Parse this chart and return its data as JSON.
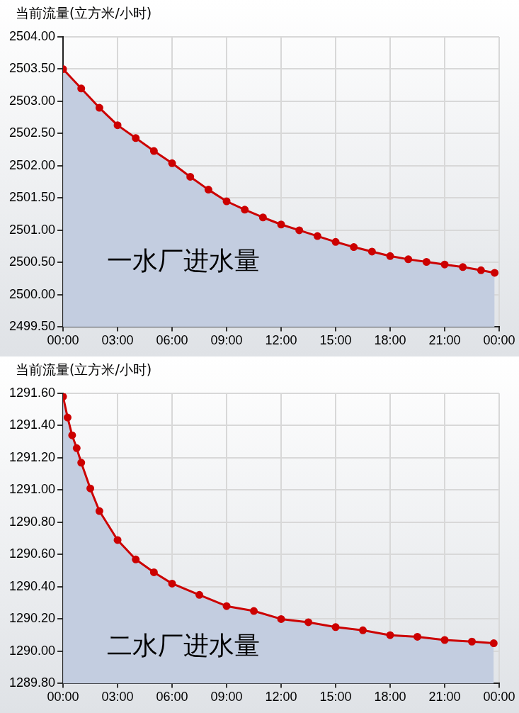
{
  "chart_data": [
    {
      "type": "area",
      "ylabel": "当前流量(立方米/小时)",
      "annotations": [
        "一水厂进水量"
      ],
      "marker": "circle",
      "grid": true,
      "x": [
        0,
        1,
        2,
        3,
        4,
        5,
        6,
        7,
        8,
        9,
        10,
        11,
        12,
        13,
        14,
        15,
        16,
        17,
        18,
        19,
        20,
        21,
        22,
        23,
        23.75
      ],
      "series": [
        {
          "color": "#cc0000",
          "values": [
            2503.5,
            2503.2,
            2502.9,
            2502.63,
            2502.43,
            2502.23,
            2502.04,
            2501.83,
            2501.63,
            2501.45,
            2501.32,
            2501.2,
            2501.09,
            2501.0,
            2500.91,
            2500.82,
            2500.74,
            2500.67,
            2500.6,
            2500.55,
            2500.51,
            2500.47,
            2500.43,
            2500.38,
            2500.34
          ]
        }
      ],
      "xlim": [
        0,
        24
      ],
      "xticks": [
        {
          "value": 0,
          "label": "00:00"
        },
        {
          "value": 3,
          "label": "03:00"
        },
        {
          "value": 6,
          "label": "06:00"
        },
        {
          "value": 9,
          "label": "09:00"
        },
        {
          "value": 12,
          "label": "12:00"
        },
        {
          "value": 15,
          "label": "15:00"
        },
        {
          "value": 18,
          "label": "18:00"
        },
        {
          "value": 21,
          "label": "21:00"
        },
        {
          "value": 24,
          "label": "00:00"
        }
      ],
      "ylim": [
        2499.5,
        2504
      ],
      "yticks": [
        {
          "value": 2499.5,
          "label": "2499.50"
        },
        {
          "value": 2500,
          "label": "2500.00"
        },
        {
          "value": 2500.5,
          "label": "2500.50"
        },
        {
          "value": 2501,
          "label": "2501.00"
        },
        {
          "value": 2501.5,
          "label": "2501.50"
        },
        {
          "value": 2502,
          "label": "2502.00"
        },
        {
          "value": 2502.5,
          "label": "2502.50"
        },
        {
          "value": 2503,
          "label": "2503.00"
        },
        {
          "value": 2503.5,
          "label": "2503.50"
        },
        {
          "value": 2504,
          "label": "2504.00"
        }
      ]
    },
    {
      "type": "area",
      "ylabel": "当前流量(立方米/小时)",
      "annotations": [
        "二水厂进水量"
      ],
      "marker": "circle",
      "grid": true,
      "x": [
        0,
        0.25,
        0.5,
        0.75,
        1,
        1.5,
        2,
        3,
        4,
        5,
        6,
        7.5,
        9,
        10.5,
        12,
        13.5,
        15,
        16.5,
        18,
        19.5,
        21,
        22.5,
        23.7
      ],
      "series": [
        {
          "color": "#cc0000",
          "values": [
            1291.58,
            1291.45,
            1291.34,
            1291.26,
            1291.17,
            1291.01,
            1290.87,
            1290.69,
            1290.57,
            1290.49,
            1290.42,
            1290.35,
            1290.28,
            1290.25,
            1290.2,
            1290.18,
            1290.15,
            1290.13,
            1290.1,
            1290.09,
            1290.07,
            1290.06,
            1290.05
          ]
        }
      ],
      "xlim": [
        0,
        24
      ],
      "xticks": [
        {
          "value": 0,
          "label": "00:00"
        },
        {
          "value": 3,
          "label": "03:00"
        },
        {
          "value": 6,
          "label": "06:00"
        },
        {
          "value": 9,
          "label": "09:00"
        },
        {
          "value": 12,
          "label": "12:00"
        },
        {
          "value": 15,
          "label": "15:00"
        },
        {
          "value": 18,
          "label": "18:00"
        },
        {
          "value": 21,
          "label": "21:00"
        },
        {
          "value": 24,
          "label": "00:00"
        }
      ],
      "ylim": [
        1289.8,
        1291.6
      ],
      "yticks": [
        {
          "value": 1289.8,
          "label": "1289.80"
        },
        {
          "value": 1290,
          "label": "1290.00"
        },
        {
          "value": 1290.2,
          "label": "1290.20"
        },
        {
          "value": 1290.4,
          "label": "1290.40"
        },
        {
          "value": 1290.6,
          "label": "1290.60"
        },
        {
          "value": 1290.8,
          "label": "1290.80"
        },
        {
          "value": 1291,
          "label": "1291.00"
        },
        {
          "value": 1291.2,
          "label": "1291.20"
        },
        {
          "value": 1291.4,
          "label": "1291.40"
        },
        {
          "value": 1291.6,
          "label": "1291.60"
        }
      ]
    }
  ]
}
